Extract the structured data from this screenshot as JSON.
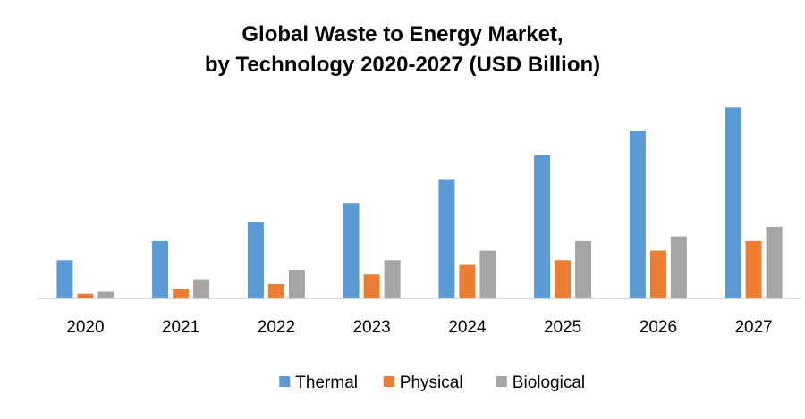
{
  "chart_data": {
    "type": "bar",
    "title_lines": [
      "Global Waste to Energy Market,",
      "by Technology 2020-2027 (USD Billion)"
    ],
    "xlabel": "",
    "ylabel": "",
    "categories": [
      "2020",
      "2021",
      "2022",
      "2023",
      "2024",
      "2025",
      "2026",
      "2027"
    ],
    "series": [
      {
        "name": "Thermal",
        "color": "#5B9BD5",
        "values": [
          4.0,
          6.0,
          8.0,
          10.0,
          12.5,
          15.0,
          17.5,
          20.0
        ]
      },
      {
        "name": "Physical",
        "color": "#ED7D31",
        "values": [
          0.5,
          1.0,
          1.5,
          2.5,
          3.5,
          4.0,
          5.0,
          6.0
        ]
      },
      {
        "name": "Biological",
        "color": "#A5A5A5",
        "values": [
          0.7,
          2.0,
          3.0,
          4.0,
          5.0,
          6.0,
          6.5,
          7.5
        ]
      }
    ],
    "ylim": [
      0,
      20.5
    ],
    "grid": false,
    "y_axis_visible": false,
    "legend_position": "bottom"
  }
}
